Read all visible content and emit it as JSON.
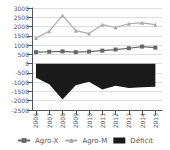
{
  "chart_data": {
    "type": "line",
    "x": [
      2006,
      2007,
      2008,
      2009,
      2010,
      2011,
      2012,
      2013,
      2014,
      2015
    ],
    "xlim": [
      2005.7,
      2015.5
    ],
    "xticks": [
      2006,
      2007,
      2008,
      2009,
      2010,
      2011,
      2012,
      2013,
      2014,
      2015
    ],
    "ylim": [
      -2500,
      3000
    ],
    "yticks": [
      -2500,
      -2000,
      -1500,
      -1000,
      -500,
      0,
      500,
      1000,
      1500,
      2000,
      2500,
      3000
    ],
    "grid": true,
    "legend": "bottom",
    "series": [
      {
        "name": "Agro-X",
        "type": "line",
        "marker": "square",
        "color": "#666666",
        "values": [
          620,
          640,
          660,
          620,
          650,
          700,
          760,
          830,
          920,
          860
        ]
      },
      {
        "name": "Agro-M",
        "type": "line",
        "marker": "triangle",
        "color": "#aaaaaa",
        "values": [
          1380,
          1750,
          2600,
          1780,
          1620,
          2100,
          1950,
          2150,
          2200,
          2100
        ]
      },
      {
        "name": "Déficit",
        "type": "area",
        "color": "#1a1a1a",
        "values": [
          -760,
          -1110,
          -1940,
          -1160,
          -970,
          -1400,
          -1190,
          -1320,
          -1280,
          -1240
        ]
      }
    ]
  }
}
